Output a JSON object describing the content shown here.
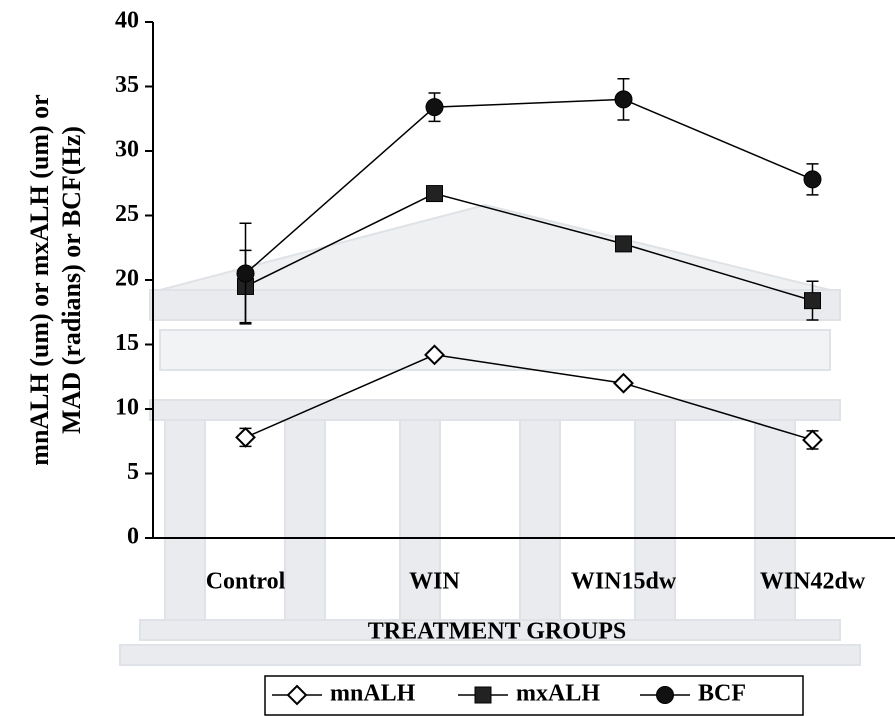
{
  "chart_data": {
    "type": "line",
    "ylabel": [
      "mnALH (um) or mxALH (um) or",
      "MAD (radians) or BCF(Hz)"
    ],
    "xlabel": "TREATMENT GROUPS",
    "categories": [
      "Control",
      "WIN",
      "WIN15dw",
      "WIN42dw"
    ],
    "ylim": [
      0,
      40
    ],
    "yticks": [
      0,
      5,
      10,
      15,
      20,
      25,
      30,
      35,
      40
    ],
    "series": [
      {
        "name": "mnALH",
        "color": "#000000",
        "marker": "diamond-open",
        "values": [
          7.8,
          14.2,
          12.0,
          7.6
        ],
        "errors": [
          0.7,
          0.3,
          0.3,
          0.7
        ]
      },
      {
        "name": "mxALH",
        "color": "#000000",
        "marker": "square",
        "values": [
          19.5,
          26.7,
          22.8,
          18.4
        ],
        "errors": [
          2.8,
          0.4,
          0.3,
          1.5
        ]
      },
      {
        "name": "BCF",
        "color": "#000000",
        "marker": "circle",
        "values": [
          20.5,
          33.4,
          34.0,
          27.8
        ],
        "errors": [
          3.9,
          1.1,
          1.6,
          1.2
        ]
      }
    ]
  }
}
